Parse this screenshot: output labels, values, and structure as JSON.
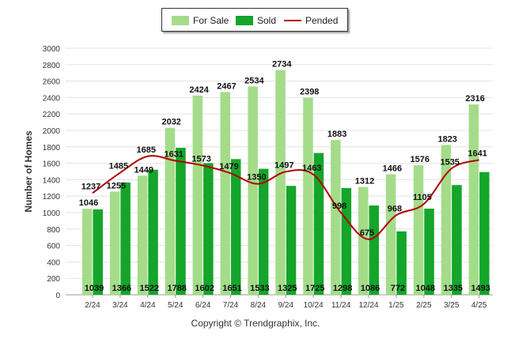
{
  "copyright": "Copyright © Trendgraphix, Inc.",
  "colors": {
    "for_sale": "#a4dc8a",
    "sold": "#14a52a",
    "pended": "#b30000",
    "grid": "#e3e3e3"
  },
  "chart_data": {
    "type": "bar",
    "title": "",
    "xlabel": "",
    "ylabel": "Number of Homes",
    "ylim": [
      0,
      3000
    ],
    "yticks": [
      0,
      200,
      400,
      600,
      800,
      1000,
      1200,
      1400,
      1600,
      1800,
      2000,
      2200,
      2400,
      2600,
      2800,
      3000
    ],
    "grid": true,
    "legend_placement": "top-center",
    "categories": [
      "2/24",
      "3/24",
      "4/24",
      "5/24",
      "6/24",
      "7/24",
      "8/24",
      "9/24",
      "10/24",
      "11/24",
      "12/24",
      "1/25",
      "2/25",
      "3/25",
      "4/25"
    ],
    "series": [
      {
        "name": "For Sale",
        "type": "bar",
        "values": [
          1046,
          1255,
          1449,
          2032,
          2424,
          2467,
          2534,
          2734,
          2398,
          1883,
          1312,
          1466,
          1576,
          1823,
          2316
        ]
      },
      {
        "name": "Sold",
        "type": "bar",
        "values": [
          1039,
          1366,
          1522,
          1788,
          1602,
          1651,
          1533,
          1325,
          1725,
          1298,
          1086,
          772,
          1048,
          1335,
          1493
        ]
      },
      {
        "name": "Pended",
        "type": "line",
        "values": [
          1237,
          1485,
          1685,
          1631,
          1573,
          1479,
          1350,
          1497,
          1463,
          998,
          675,
          968,
          1105,
          1535,
          1641
        ]
      }
    ]
  }
}
